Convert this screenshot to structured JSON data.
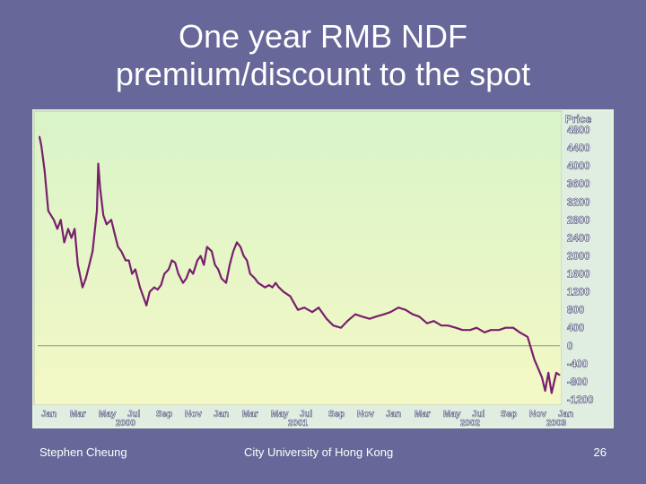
{
  "slide": {
    "title_line1": "One year RMB NDF",
    "title_line2": "premium/discount to the spot",
    "footer_author": "Stephen Cheung",
    "footer_institution": "City University of Hong Kong",
    "page_number": "26"
  },
  "colors": {
    "background": "#676799",
    "line": "#7a1f6e",
    "plot_top": "#d8f4c8",
    "plot_bottom": "#f4f8c6",
    "zero_line": "#8a9a8a"
  },
  "chart_data": {
    "type": "line",
    "title": "",
    "xlabel": "",
    "ylabel": "Price",
    "ylim": [
      -1200,
      5000
    ],
    "grid": false,
    "y_ticks": [
      "4800",
      "4400",
      "4000",
      "3600",
      "3200",
      "2800",
      "2400",
      "2000",
      "1600",
      "1200",
      "800",
      "400",
      "0",
      "-400",
      "-800",
      "-1200"
    ],
    "x_month_labels": [
      "Jan",
      "Mar",
      "May",
      "Jul",
      "Sep",
      "Nov",
      "Jan",
      "Mar",
      "May",
      "Jul",
      "Sep",
      "Nov",
      "Jan",
      "Mar",
      "May",
      "Jul",
      "Sep",
      "Nov",
      "Jan"
    ],
    "x_year_labels": [
      {
        "label": "2000",
        "month_index": 6
      },
      {
        "label": "2001",
        "month_index": 18
      },
      {
        "label": "2002",
        "month_index": 30
      },
      {
        "label": "2003",
        "month_index": 36
      }
    ],
    "x_start": "2000-01",
    "x_end": "2003-01",
    "series": [
      {
        "x": [
          "2000-01-01",
          "2000-01-05",
          "2000-01-12",
          "2000-01-20",
          "2000-02-01",
          "2000-02-08",
          "2000-02-15",
          "2000-02-22",
          "2000-03-01",
          "2000-03-08",
          "2000-03-15",
          "2000-03-22",
          "2000-04-01",
          "2000-04-08",
          "2000-04-15",
          "2000-04-22",
          "2000-05-01",
          "2000-05-04",
          "2000-05-08",
          "2000-05-15",
          "2000-05-22",
          "2000-06-01",
          "2000-06-08",
          "2000-06-15",
          "2000-06-22",
          "2000-07-01",
          "2000-07-08",
          "2000-07-15",
          "2000-07-22",
          "2000-08-01",
          "2000-08-08",
          "2000-08-15",
          "2000-08-22",
          "2000-09-01",
          "2000-09-08",
          "2000-09-15",
          "2000-09-22",
          "2000-10-01",
          "2000-10-08",
          "2000-10-15",
          "2000-10-22",
          "2000-11-01",
          "2000-11-08",
          "2000-11-15",
          "2000-11-22",
          "2000-12-01",
          "2000-12-08",
          "2000-12-15",
          "2000-12-22",
          "2001-01-01",
          "2001-01-08",
          "2001-01-15",
          "2001-01-22",
          "2001-02-01",
          "2001-02-08",
          "2001-02-15",
          "2001-02-22",
          "2001-03-01",
          "2001-03-08",
          "2001-03-15",
          "2001-03-22",
          "2001-04-01",
          "2001-04-08",
          "2001-04-15",
          "2001-04-22",
          "2001-05-01",
          "2001-05-08",
          "2001-05-15",
          "2001-05-22",
          "2001-06-01",
          "2001-06-15",
          "2001-07-01",
          "2001-07-15",
          "2001-08-01",
          "2001-08-15",
          "2001-09-01",
          "2001-09-15",
          "2001-10-01",
          "2001-10-15",
          "2001-11-01",
          "2001-11-15",
          "2001-12-01",
          "2001-12-15",
          "2002-01-01",
          "2002-01-15",
          "2002-02-01",
          "2002-02-15",
          "2002-03-01",
          "2002-03-15",
          "2002-04-01",
          "2002-04-15",
          "2002-05-01",
          "2002-05-15",
          "2002-06-01",
          "2002-06-15",
          "2002-07-01",
          "2002-07-15",
          "2002-08-01",
          "2002-08-15",
          "2002-09-01",
          "2002-09-15",
          "2002-10-01",
          "2002-10-15",
          "2002-11-01",
          "2002-11-15",
          "2002-12-01",
          "2002-12-08",
          "2002-12-15",
          "2002-12-22",
          "2003-01-01",
          "2003-01-08"
        ],
        "y": [
          4650,
          4450,
          3900,
          3000,
          2800,
          2600,
          2800,
          2300,
          2600,
          2400,
          2600,
          1800,
          1300,
          1500,
          1800,
          2100,
          3000,
          4050,
          3500,
          2900,
          2700,
          2800,
          2500,
          2200,
          2100,
          1900,
          1900,
          1600,
          1700,
          1300,
          1100,
          900,
          1200,
          1300,
          1250,
          1350,
          1600,
          1700,
          1900,
          1850,
          1600,
          1400,
          1500,
          1700,
          1600,
          1900,
          2000,
          1800,
          2200,
          2100,
          1800,
          1700,
          1500,
          1400,
          1800,
          2100,
          2300,
          2200,
          2000,
          1900,
          1600,
          1500,
          1400,
          1350,
          1300,
          1350,
          1300,
          1400,
          1300,
          1200,
          1100,
          800,
          850,
          750,
          850,
          600,
          450,
          400,
          550,
          700,
          650,
          600,
          650,
          700,
          750,
          850,
          800,
          700,
          650,
          500,
          550,
          450,
          450,
          400,
          350,
          350,
          400,
          300,
          350,
          350,
          400,
          400,
          300,
          200,
          -300,
          -700,
          -1000,
          -600,
          -1050,
          -600,
          -650
        ]
      }
    ]
  }
}
